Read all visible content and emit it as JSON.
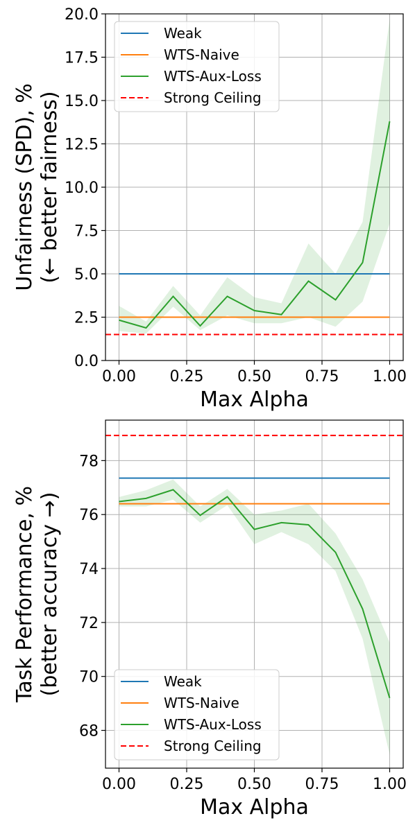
{
  "chart_data": [
    {
      "type": "line",
      "xlabel": "Max Alpha",
      "ylabel": [
        "Unfairness (SPD), %",
        "(← better fairness)"
      ],
      "xlim": [
        -0.05,
        1.05
      ],
      "ylim": [
        0,
        20
      ],
      "xticks": [
        0.0,
        0.25,
        0.5,
        0.75,
        1.0
      ],
      "xtick_labels": [
        "0.00",
        "0.25",
        "0.50",
        "0.75",
        "1.00"
      ],
      "yticks": [
        0.0,
        2.5,
        5.0,
        7.5,
        10.0,
        12.5,
        15.0,
        17.5,
        20.0
      ],
      "ytick_labels": [
        "0.0",
        "2.5",
        "5.0",
        "7.5",
        "10.0",
        "12.5",
        "15.0",
        "17.5",
        "20.0"
      ],
      "grid": true,
      "legend_position": "upper-left",
      "x": [
        0.0,
        0.1,
        0.2,
        0.3,
        0.4,
        0.5,
        0.6,
        0.7,
        0.8,
        0.9,
        1.0
      ],
      "series": [
        {
          "name": "Weak",
          "color": "#1f77b4",
          "style": "solid",
          "x": [
            0.0,
            1.0
          ],
          "values": [
            5.0,
            5.0
          ]
        },
        {
          "name": "WTS-Naive",
          "color": "#ff7f0e",
          "style": "solid",
          "x": [
            0.0,
            1.0
          ],
          "values": [
            2.5,
            2.5
          ]
        },
        {
          "name": "WTS-Aux-Loss",
          "color": "#2ca02c",
          "style": "solid",
          "values": [
            2.33,
            1.88,
            3.7,
            2.0,
            3.7,
            2.88,
            2.65,
            4.58,
            3.5,
            5.65,
            13.8
          ],
          "lower": [
            1.7,
            1.55,
            3.1,
            1.75,
            2.6,
            2.15,
            2.15,
            2.5,
            1.95,
            3.4,
            7.9
          ],
          "upper": [
            3.15,
            2.25,
            4.3,
            2.6,
            4.8,
            3.65,
            3.3,
            6.75,
            5.0,
            8.0,
            19.7
          ]
        },
        {
          "name": "Strong Ceiling",
          "color": "#ff0000",
          "style": "dashed",
          "x": [
            -0.05,
            1.05
          ],
          "values": [
            1.5,
            1.5
          ]
        }
      ]
    },
    {
      "type": "line",
      "xlabel": "Max Alpha",
      "ylabel": [
        "Task Performance, %",
        "(better accuracy →)"
      ],
      "xlim": [
        -0.05,
        1.05
      ],
      "ylim": [
        66.6,
        79.5
      ],
      "xticks": [
        0.0,
        0.25,
        0.5,
        0.75,
        1.0
      ],
      "xtick_labels": [
        "0.00",
        "0.25",
        "0.50",
        "0.75",
        "1.00"
      ],
      "yticks": [
        68,
        70,
        72,
        74,
        76,
        78
      ],
      "ytick_labels": [
        "68",
        "70",
        "72",
        "74",
        "76",
        "78"
      ],
      "grid": true,
      "legend_position": "lower-left",
      "x": [
        0.0,
        0.1,
        0.2,
        0.3,
        0.4,
        0.5,
        0.6,
        0.7,
        0.8,
        0.9,
        1.0
      ],
      "series": [
        {
          "name": "Weak",
          "color": "#1f77b4",
          "style": "solid",
          "x": [
            0.0,
            1.0
          ],
          "values": [
            77.35,
            77.35
          ]
        },
        {
          "name": "WTS-Naive",
          "color": "#ff7f0e",
          "style": "solid",
          "x": [
            0.0,
            1.0
          ],
          "values": [
            76.4,
            76.4
          ]
        },
        {
          "name": "WTS-Aux-Loss",
          "color": "#2ca02c",
          "style": "solid",
          "values": [
            76.48,
            76.6,
            76.92,
            75.97,
            76.66,
            75.45,
            75.7,
            75.62,
            74.6,
            72.5,
            69.2
          ],
          "lower": [
            76.3,
            76.3,
            76.55,
            75.7,
            76.35,
            74.9,
            75.35,
            74.9,
            73.9,
            71.4,
            67.1
          ],
          "upper": [
            76.65,
            76.9,
            77.3,
            76.3,
            76.95,
            76.0,
            76.15,
            76.4,
            75.3,
            73.6,
            71.25
          ]
        },
        {
          "name": "Strong Ceiling",
          "color": "#ff0000",
          "style": "dashed",
          "x": [
            -0.05,
            1.05
          ],
          "values": [
            78.93,
            78.93
          ]
        }
      ]
    }
  ]
}
